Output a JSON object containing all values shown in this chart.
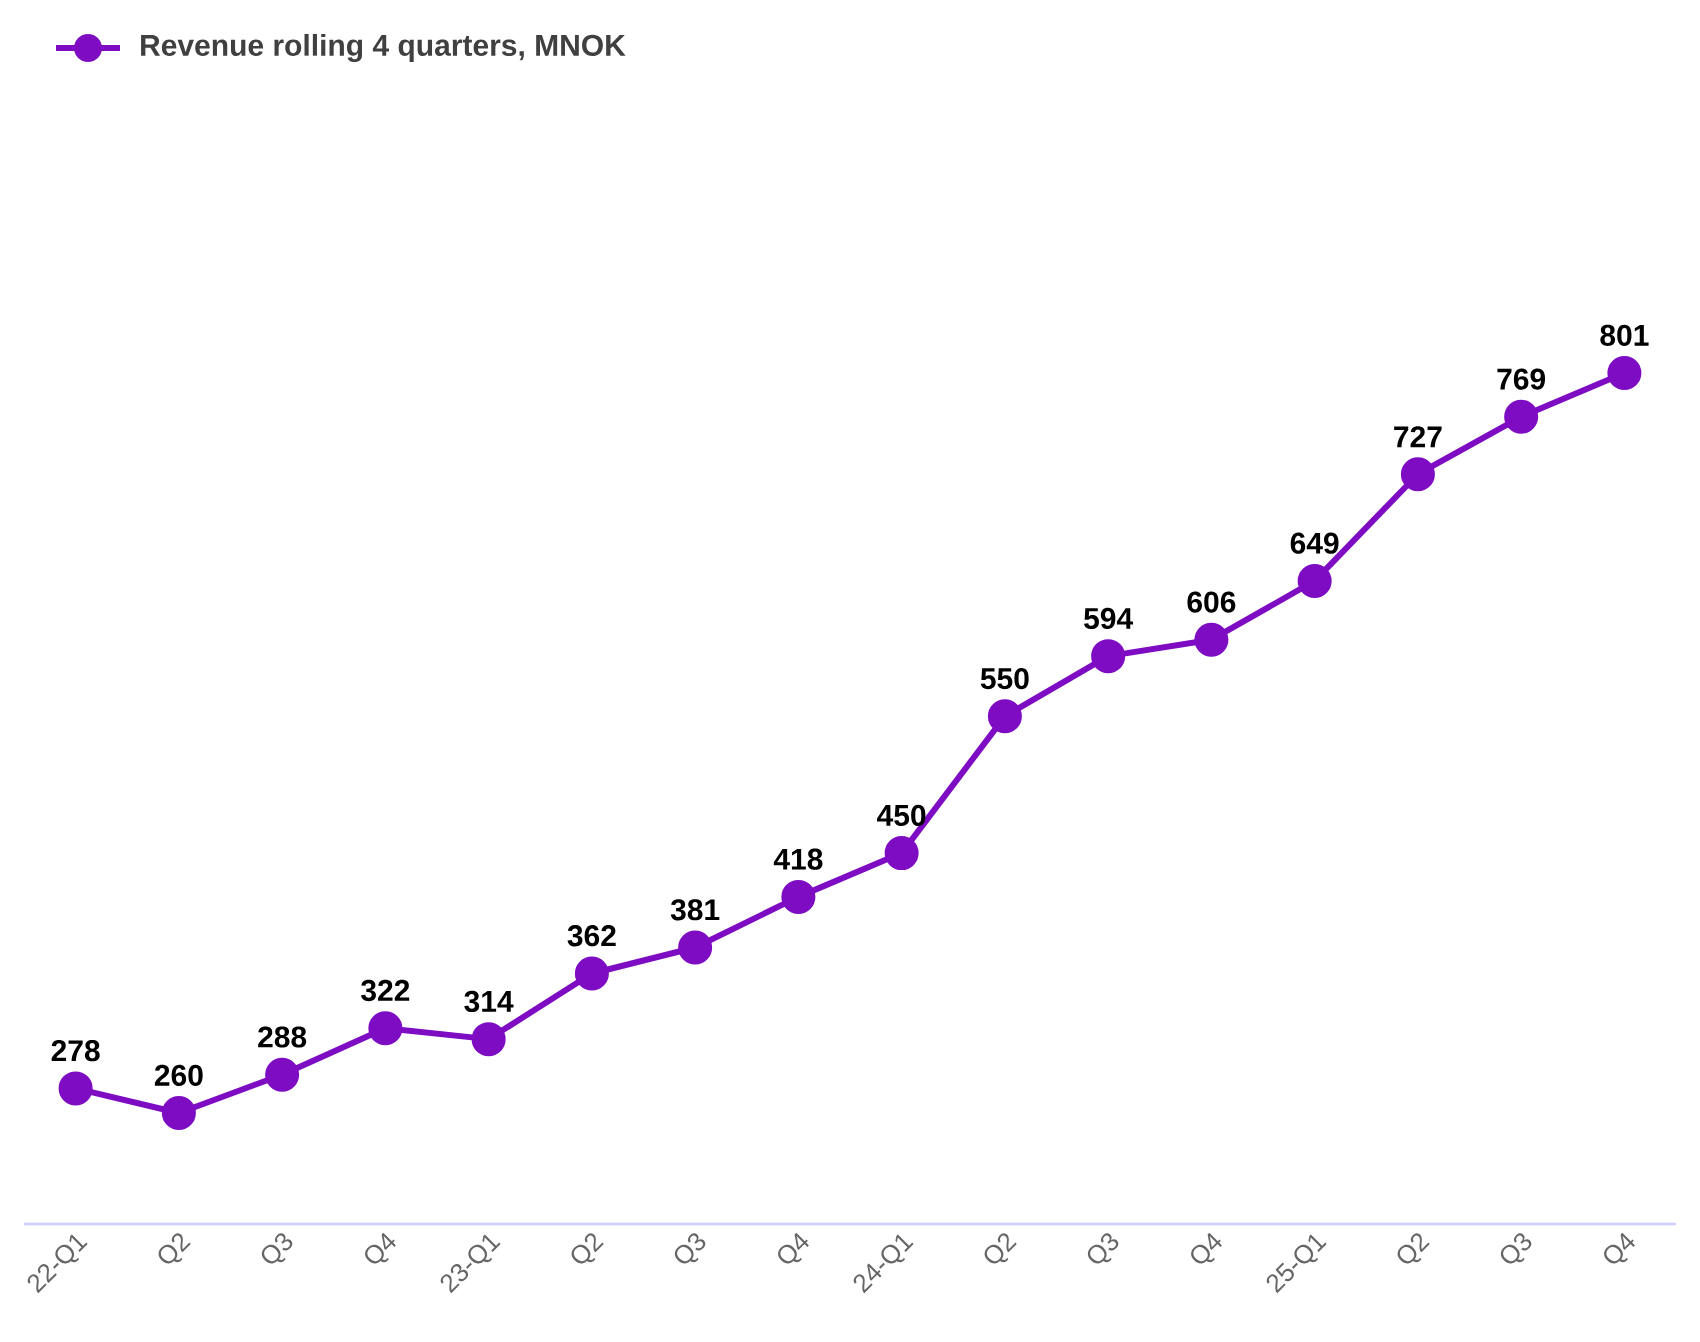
{
  "chart_data": {
    "type": "line",
    "categories": [
      "22-Q1",
      "Q2",
      "Q3",
      "Q4",
      "23-Q1",
      "Q2",
      "Q3",
      "Q4",
      "24-Q1",
      "Q2",
      "Q3",
      "Q4",
      "25-Q1",
      "Q2",
      "Q3",
      "Q4"
    ],
    "series": [
      {
        "name": "Revenue rolling 4 quarters, MNOK",
        "color": "#7e0cc2",
        "values": [
          278,
          260,
          288,
          322,
          314,
          362,
          381,
          418,
          450,
          550,
          594,
          606,
          649,
          727,
          769,
          801
        ]
      }
    ],
    "data_labels": true,
    "legend": "top left",
    "marker": "circle",
    "line_style": "solid",
    "grid": false
  }
}
